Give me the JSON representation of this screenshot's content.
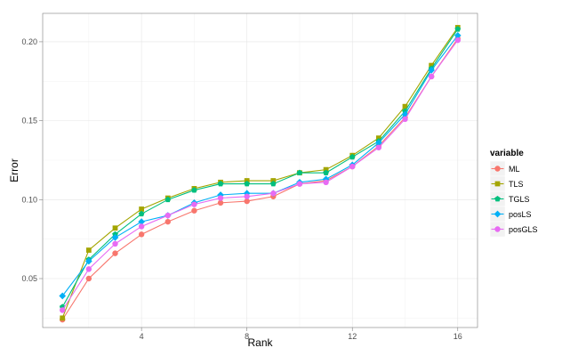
{
  "chart_data": {
    "type": "line",
    "xlabel": "Rank",
    "ylabel": "Error",
    "xlim": [
      0.25,
      16.75
    ],
    "ylim": [
      0.019,
      0.218
    ],
    "x_ticks": [
      4,
      8,
      12,
      16
    ],
    "y_ticks": [
      0.05,
      0.1,
      0.15,
      0.2
    ],
    "x_tick_labels": [
      "4",
      "8",
      "12",
      "16"
    ],
    "y_tick_labels": [
      "0.05",
      "0.10",
      "0.15",
      "0.20"
    ],
    "grid": true,
    "legend_title": "variable",
    "legend_position": "right",
    "x": [
      1,
      2,
      3,
      4,
      5,
      6,
      7,
      8,
      9,
      10,
      11,
      12,
      13,
      14,
      15,
      16
    ],
    "series": [
      {
        "name": "ML",
        "color": "#F8766D",
        "marker": "circle",
        "values": [
          0.024,
          0.05,
          0.066,
          0.078,
          0.086,
          0.093,
          0.098,
          0.099,
          0.102,
          0.11,
          0.112,
          0.121,
          0.134,
          0.152,
          0.178,
          0.202
        ]
      },
      {
        "name": "TLS",
        "color": "#A3A500",
        "marker": "square",
        "values": [
          0.025,
          0.068,
          0.082,
          0.094,
          0.101,
          0.107,
          0.111,
          0.112,
          0.112,
          0.117,
          0.119,
          0.128,
          0.139,
          0.159,
          0.185,
          0.209
        ]
      },
      {
        "name": "TGLS",
        "color": "#00BF7D",
        "marker": "pentagon",
        "values": [
          0.032,
          0.062,
          0.078,
          0.091,
          0.1,
          0.106,
          0.11,
          0.11,
          0.11,
          0.117,
          0.117,
          0.127,
          0.137,
          0.156,
          0.183,
          0.208
        ]
      },
      {
        "name": "posLS",
        "color": "#00B0F6",
        "marker": "diamond",
        "values": [
          0.039,
          0.061,
          0.076,
          0.086,
          0.09,
          0.098,
          0.103,
          0.104,
          0.104,
          0.111,
          0.113,
          0.122,
          0.136,
          0.154,
          0.182,
          0.204
        ]
      },
      {
        "name": "posGLS",
        "color": "#E76BF3",
        "marker": "circle",
        "values": [
          0.03,
          0.056,
          0.072,
          0.083,
          0.09,
          0.097,
          0.101,
          0.102,
          0.104,
          0.11,
          0.111,
          0.121,
          0.133,
          0.151,
          0.178,
          0.201
        ]
      }
    ]
  }
}
